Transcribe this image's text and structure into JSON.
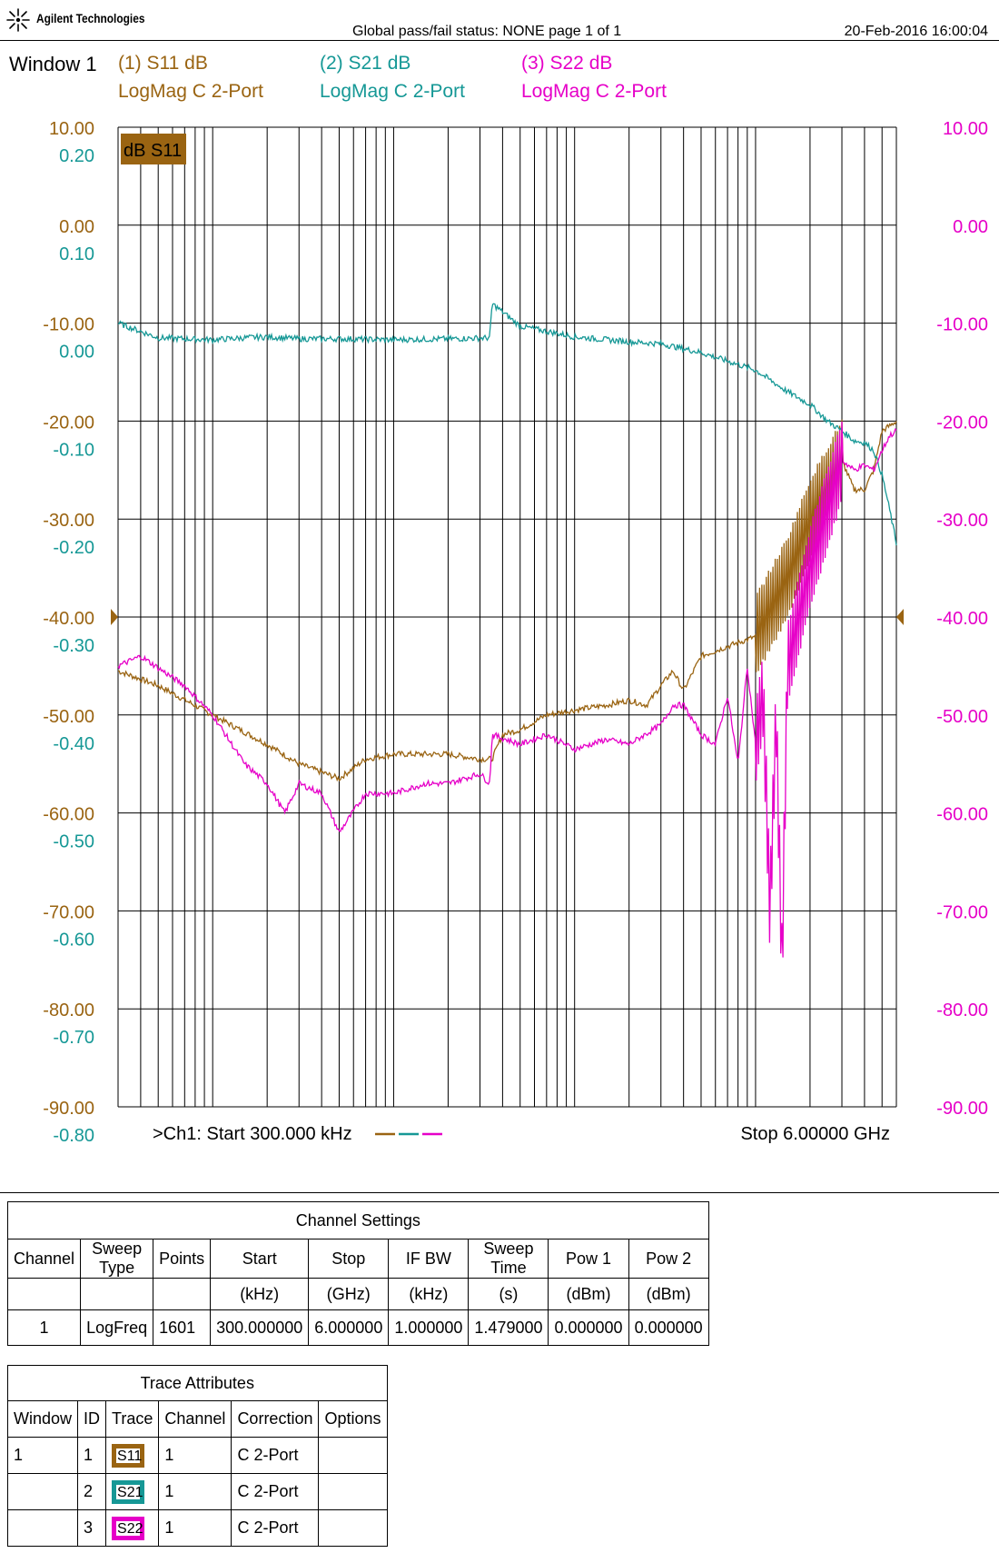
{
  "header": {
    "brand": "Agilent Technologies",
    "status": "Global pass/fail status: NONE    page  1 of  1",
    "datetime": "20-Feb-2016   16:00:04"
  },
  "window_label": "Window 1",
  "traces": [
    {
      "id": "(1) S11 dB",
      "format": "LogMag C  2-Port",
      "color": "#9a6412"
    },
    {
      "id": "(2) S21 dB",
      "format": "LogMag C  2-Port",
      "color": "#169896"
    },
    {
      "id": "(3) S22 dB",
      "format": "LogMag C  2-Port",
      "color": "#e600c8"
    }
  ],
  "chart_data": {
    "type": "line",
    "x_scale": "log",
    "xlim_hz": [
      300000,
      6000000000
    ],
    "active_marker_label": "dB S11",
    "start_label": ">Ch1: Start  300.000 kHz",
    "stop_label": "Stop  6.00000 GHz",
    "y_axes": [
      {
        "name": "S11 dB",
        "side": "left",
        "color": "#9a6412",
        "ylim": [
          -90,
          10
        ],
        "ticks": [
          "10.00",
          "0.00",
          "-10.00",
          "-20.00",
          "-30.00",
          "-40.00",
          "-50.00",
          "-60.00",
          "-70.00",
          "-80.00",
          "-90.00"
        ]
      },
      {
        "name": "S21 dB",
        "side": "left",
        "color": "#169896",
        "ylim": [
          -0.8,
          0.2
        ],
        "ticks": [
          "0.20",
          "0.10",
          "0.00",
          "-0.10",
          "-0.20",
          "-0.30",
          "-0.40",
          "-0.50",
          "-0.60",
          "-0.70",
          "-0.80"
        ]
      },
      {
        "name": "S22 dB",
        "side": "right",
        "color": "#e600c8",
        "ylim": [
          -90,
          10
        ],
        "ticks": [
          "10.00",
          "0.00",
          "-10.00",
          "-20.00",
          "-30.00",
          "-40.00",
          "-50.00",
          "-60.00",
          "-70.00",
          "-80.00",
          "-90.00"
        ]
      }
    ],
    "reference_level_db": -40,
    "series": [
      {
        "name": "S11",
        "axis": 0,
        "color": "#9a6412",
        "x_hz": [
          300000.0,
          500000.0,
          1000000.0,
          2000000.0,
          3000000.0,
          5000000.0,
          7000000.0,
          10000000.0,
          15000000.0,
          20000000.0,
          30000000.0,
          35000000.0,
          40000000.0,
          50000000.0,
          70000000.0,
          100000000.0,
          150000000.0,
          200000000.0,
          250000000.0,
          300000000.0,
          350000000.0,
          400000000.0,
          500000000.0,
          700000000.0,
          1000000000.0,
          1500000000.0,
          2000000000.0,
          3000000000.0,
          3500000000.0,
          4000000000.0,
          4500000000.0,
          5000000000.0,
          5500000000.0,
          6000000000.0
        ],
        "y_db": [
          -45.5,
          -47,
          -50,
          -53,
          -55,
          -56.5,
          -54.5,
          -54,
          -54,
          -54,
          -54.5,
          -54.5,
          -52,
          -51.5,
          -50,
          -49.5,
          -49,
          -48.5,
          -49,
          -47,
          -45.5,
          -47.5,
          -44,
          -43,
          -42,
          -36,
          -30,
          -24,
          -27,
          -27,
          -25,
          -21,
          -20.5,
          -20
        ]
      },
      {
        "name": "S21",
        "axis": 1,
        "color": "#169896",
        "x_hz": [
          300000.0,
          500000.0,
          1000000.0,
          1500000.0,
          2000000.0,
          3000000.0,
          5000000.0,
          10000000.0,
          20000000.0,
          34000000.0,
          35000000.0,
          50000000.0,
          100000000.0,
          200000000.0,
          300000000.0,
          500000000.0,
          1000000000.0,
          1500000000.0,
          2000000000.0,
          2500000000.0,
          3000000000.0,
          3500000000.0,
          4000000000.0,
          4500000000.0,
          5000000000.0,
          5500000000.0,
          6000000000.0
        ],
        "y_db": [
          0.0,
          -0.015,
          -0.017,
          -0.015,
          -0.014,
          -0.016,
          -0.016,
          -0.017,
          -0.016,
          -0.015,
          0.02,
          -0.003,
          -0.014,
          -0.019,
          -0.021,
          -0.03,
          -0.048,
          -0.07,
          -0.083,
          -0.1,
          -0.11,
          -0.12,
          -0.122,
          -0.13,
          -0.155,
          -0.19,
          -0.225
        ]
      },
      {
        "name": "S22",
        "axis": 2,
        "color": "#e600c8",
        "x_hz": [
          300000.0,
          400000.0,
          700000.0,
          1000000.0,
          1500000.0,
          2000000.0,
          2500000.0,
          3000000.0,
          4000000.0,
          5000000.0,
          7000000.0,
          10000000.0,
          15000000.0,
          20000000.0,
          30000000.0,
          34000000.0,
          35000000.0,
          50000000.0,
          70000000.0,
          100000000.0,
          150000000.0,
          200000000.0,
          300000000.0,
          350000000.0,
          400000000.0,
          500000000.0,
          600000000.0,
          700000000.0,
          800000000.0,
          900000000.0,
          1000000000.0,
          1100000000.0,
          1200000000.0,
          1300000000.0,
          1400000000.0,
          1500000000.0,
          2000000000.0,
          3000000000.0,
          3500000000.0,
          4000000000.0,
          4500000000.0,
          5000000000.0,
          5500000000.0,
          6000000000.0
        ],
        "y_db": [
          -45,
          -44,
          -47,
          -50,
          -55,
          -57,
          -60,
          -57,
          -58,
          -62,
          -58,
          -58,
          -57,
          -57,
          -56,
          -57,
          -52,
          -53,
          -52,
          -53.5,
          -52.5,
          -53,
          -51,
          -49,
          -49,
          -52,
          -53,
          -48,
          -55,
          -45,
          -53,
          -48,
          -70,
          -50,
          -76,
          -45,
          -35,
          -24,
          -25,
          -24.5,
          -25,
          -23,
          -21.5,
          -21
        ]
      }
    ]
  },
  "channel_settings": {
    "caption": "Channel Settings",
    "headers": [
      "Channel",
      "Sweep Type",
      "Points",
      "Start",
      "Stop",
      "IF BW",
      "Sweep Time",
      "Pow 1",
      "Pow 2"
    ],
    "units": [
      "",
      "",
      "",
      "(kHz)",
      "(GHz)",
      "(kHz)",
      "(s)",
      "(dBm)",
      "(dBm)"
    ],
    "rows": [
      [
        "1",
        "LogFreq",
        "1601",
        "300.000000",
        "6.000000",
        "1.000000",
        "1.479000",
        "0.000000",
        "0.000000"
      ]
    ]
  },
  "trace_attributes": {
    "caption": "Trace Attributes",
    "headers": [
      "Window",
      "ID",
      "Trace",
      "Channel",
      "Correction",
      "Options"
    ],
    "rows": [
      {
        "window": "1",
        "id": "1",
        "trace": "S11",
        "color": "#9a6412",
        "channel": "1",
        "correction": "C 2-Port",
        "options": ""
      },
      {
        "window": "",
        "id": "2",
        "trace": "S21",
        "color": "#169896",
        "channel": "1",
        "correction": "C 2-Port",
        "options": ""
      },
      {
        "window": "",
        "id": "3",
        "trace": "S22",
        "color": "#e600c8",
        "channel": "1",
        "correction": "C 2-Port",
        "options": ""
      }
    ]
  }
}
